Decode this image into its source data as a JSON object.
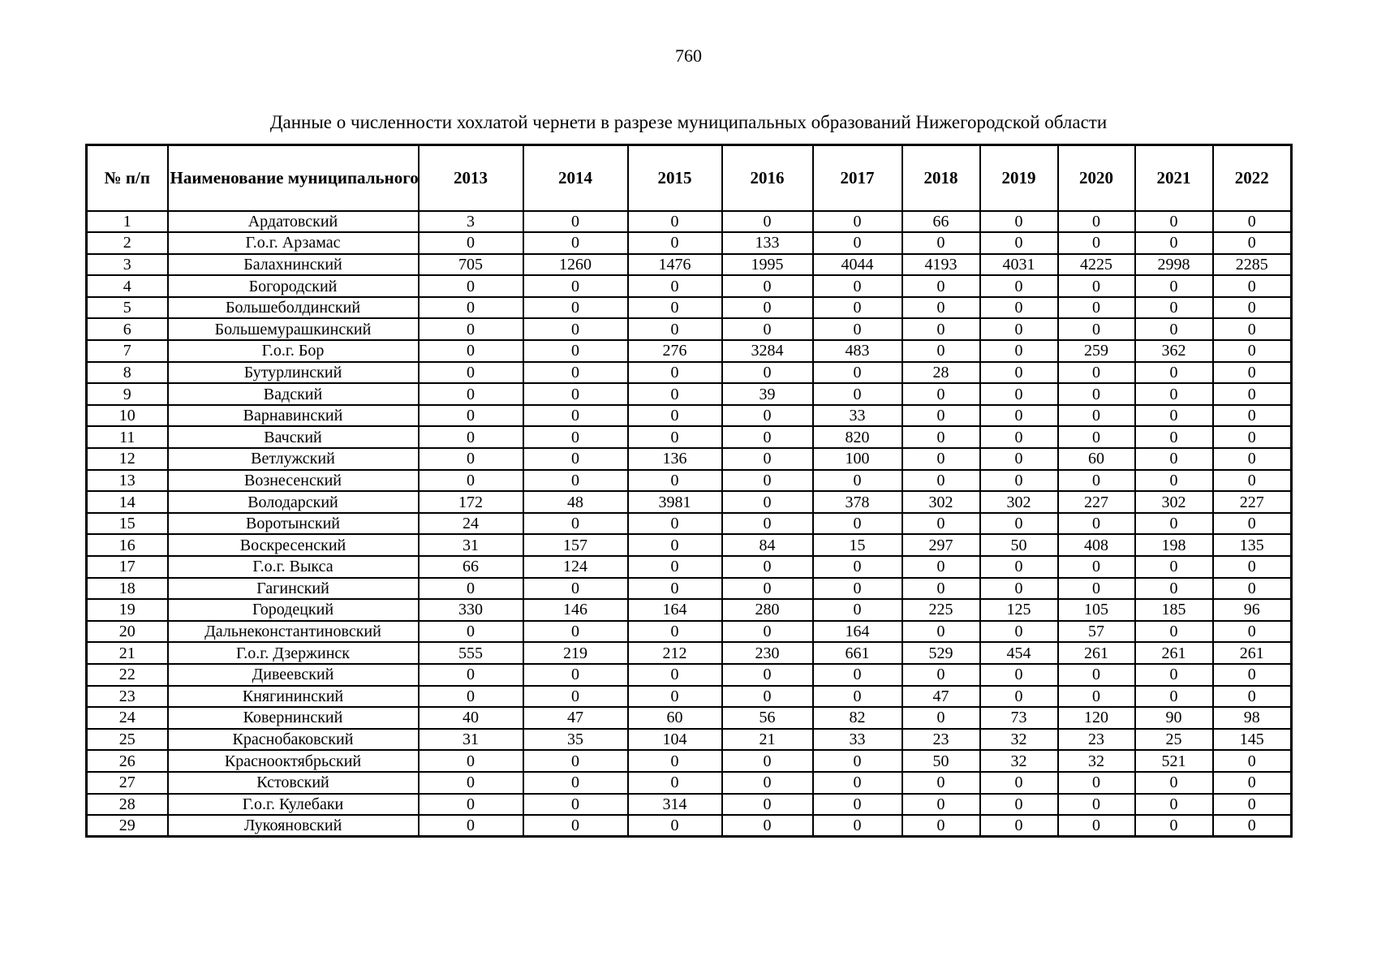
{
  "page": {
    "number": "760",
    "title": "Данные о численности хохлатой чернети в разрезе муниципальных образований Нижегородской области"
  },
  "table": {
    "headers": {
      "num": "№ п/п",
      "name": "Наименование\nмуниципального\nобразования",
      "years": [
        "2013",
        "2014",
        "2015",
        "2016",
        "2017",
        "2018",
        "2019",
        "2020",
        "2021",
        "2022"
      ]
    },
    "rows": [
      {
        "num": "1",
        "name": "Ардатовский",
        "values": [
          "3",
          "0",
          "0",
          "0",
          "0",
          "66",
          "0",
          "0",
          "0",
          "0"
        ]
      },
      {
        "num": "2",
        "name": "Г.о.г. Арзамас",
        "values": [
          "0",
          "0",
          "0",
          "133",
          "0",
          "0",
          "0",
          "0",
          "0",
          "0"
        ]
      },
      {
        "num": "3",
        "name": "Балахнинский",
        "values": [
          "705",
          "1260",
          "1476",
          "1995",
          "4044",
          "4193",
          "4031",
          "4225",
          "2998",
          "2285"
        ]
      },
      {
        "num": "4",
        "name": "Богородский",
        "values": [
          "0",
          "0",
          "0",
          "0",
          "0",
          "0",
          "0",
          "0",
          "0",
          "0"
        ]
      },
      {
        "num": "5",
        "name": "Большеболдинский",
        "values": [
          "0",
          "0",
          "0",
          "0",
          "0",
          "0",
          "0",
          "0",
          "0",
          "0"
        ]
      },
      {
        "num": "6",
        "name": "Большемурашкинский",
        "values": [
          "0",
          "0",
          "0",
          "0",
          "0",
          "0",
          "0",
          "0",
          "0",
          "0"
        ]
      },
      {
        "num": "7",
        "name": "Г.о.г. Бор",
        "values": [
          "0",
          "0",
          "276",
          "3284",
          "483",
          "0",
          "0",
          "259",
          "362",
          "0"
        ]
      },
      {
        "num": "8",
        "name": "Бутурлинский",
        "values": [
          "0",
          "0",
          "0",
          "0",
          "0",
          "28",
          "0",
          "0",
          "0",
          "0"
        ]
      },
      {
        "num": "9",
        "name": "Вадский",
        "values": [
          "0",
          "0",
          "0",
          "39",
          "0",
          "0",
          "0",
          "0",
          "0",
          "0"
        ]
      },
      {
        "num": "10",
        "name": "Варнавинский",
        "values": [
          "0",
          "0",
          "0",
          "0",
          "33",
          "0",
          "0",
          "0",
          "0",
          "0"
        ]
      },
      {
        "num": "11",
        "name": "Вачский",
        "values": [
          "0",
          "0",
          "0",
          "0",
          "820",
          "0",
          "0",
          "0",
          "0",
          "0"
        ]
      },
      {
        "num": "12",
        "name": "Ветлужский",
        "values": [
          "0",
          "0",
          "136",
          "0",
          "100",
          "0",
          "0",
          "60",
          "0",
          "0"
        ]
      },
      {
        "num": "13",
        "name": "Вознесенский",
        "values": [
          "0",
          "0",
          "0",
          "0",
          "0",
          "0",
          "0",
          "0",
          "0",
          "0"
        ]
      },
      {
        "num": "14",
        "name": "Володарский",
        "values": [
          "172",
          "48",
          "3981",
          "0",
          "378",
          "302",
          "302",
          "227",
          "302",
          "227"
        ]
      },
      {
        "num": "15",
        "name": "Воротынский",
        "values": [
          "24",
          "0",
          "0",
          "0",
          "0",
          "0",
          "0",
          "0",
          "0",
          "0"
        ]
      },
      {
        "num": "16",
        "name": "Воскресенский",
        "values": [
          "31",
          "157",
          "0",
          "84",
          "15",
          "297",
          "50",
          "408",
          "198",
          "135"
        ]
      },
      {
        "num": "17",
        "name": "Г.о.г. Выкса",
        "values": [
          "66",
          "124",
          "0",
          "0",
          "0",
          "0",
          "0",
          "0",
          "0",
          "0"
        ]
      },
      {
        "num": "18",
        "name": "Гагинский",
        "values": [
          "0",
          "0",
          "0",
          "0",
          "0",
          "0",
          "0",
          "0",
          "0",
          "0"
        ]
      },
      {
        "num": "19",
        "name": "Городецкий",
        "values": [
          "330",
          "146",
          "164",
          "280",
          "0",
          "225",
          "125",
          "105",
          "185",
          "96"
        ]
      },
      {
        "num": "20",
        "name": "Дальнеконстантиновский",
        "values": [
          "0",
          "0",
          "0",
          "0",
          "164",
          "0",
          "0",
          "57",
          "0",
          "0"
        ]
      },
      {
        "num": "21",
        "name": "Г.о.г. Дзержинск",
        "values": [
          "555",
          "219",
          "212",
          "230",
          "661",
          "529",
          "454",
          "261",
          "261",
          "261"
        ]
      },
      {
        "num": "22",
        "name": "Дивеевский",
        "values": [
          "0",
          "0",
          "0",
          "0",
          "0",
          "0",
          "0",
          "0",
          "0",
          "0"
        ]
      },
      {
        "num": "23",
        "name": "Княгининский",
        "values": [
          "0",
          "0",
          "0",
          "0",
          "0",
          "47",
          "0",
          "0",
          "0",
          "0"
        ]
      },
      {
        "num": "24",
        "name": "Ковернинский",
        "values": [
          "40",
          "47",
          "60",
          "56",
          "82",
          "0",
          "73",
          "120",
          "90",
          "98"
        ]
      },
      {
        "num": "25",
        "name": "Краснобаковский",
        "values": [
          "31",
          "35",
          "104",
          "21",
          "33",
          "23",
          "32",
          "23",
          "25",
          "145"
        ]
      },
      {
        "num": "26",
        "name": "Краснооктябрьский",
        "values": [
          "0",
          "0",
          "0",
          "0",
          "0",
          "50",
          "32",
          "32",
          "521",
          "0"
        ]
      },
      {
        "num": "27",
        "name": "Кстовский",
        "values": [
          "0",
          "0",
          "0",
          "0",
          "0",
          "0",
          "0",
          "0",
          "0",
          "0"
        ]
      },
      {
        "num": "28",
        "name": "Г.о.г. Кулебаки",
        "values": [
          "0",
          "0",
          "314",
          "0",
          "0",
          "0",
          "0",
          "0",
          "0",
          "0"
        ]
      },
      {
        "num": "29",
        "name": "Лукояновский",
        "values": [
          "0",
          "0",
          "0",
          "0",
          "0",
          "0",
          "0",
          "0",
          "0",
          "0"
        ]
      }
    ]
  }
}
